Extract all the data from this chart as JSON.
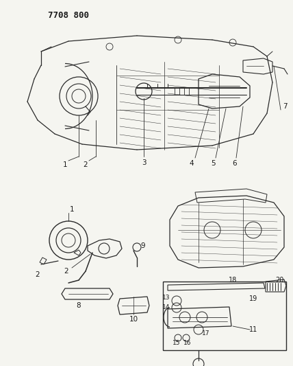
{
  "title": "7708 800",
  "bg": "#f5f5f0",
  "lc": "#2a2a2a",
  "tc": "#1a1a1a",
  "fig_width": 4.28,
  "fig_height": 5.33,
  "dpi": 100
}
